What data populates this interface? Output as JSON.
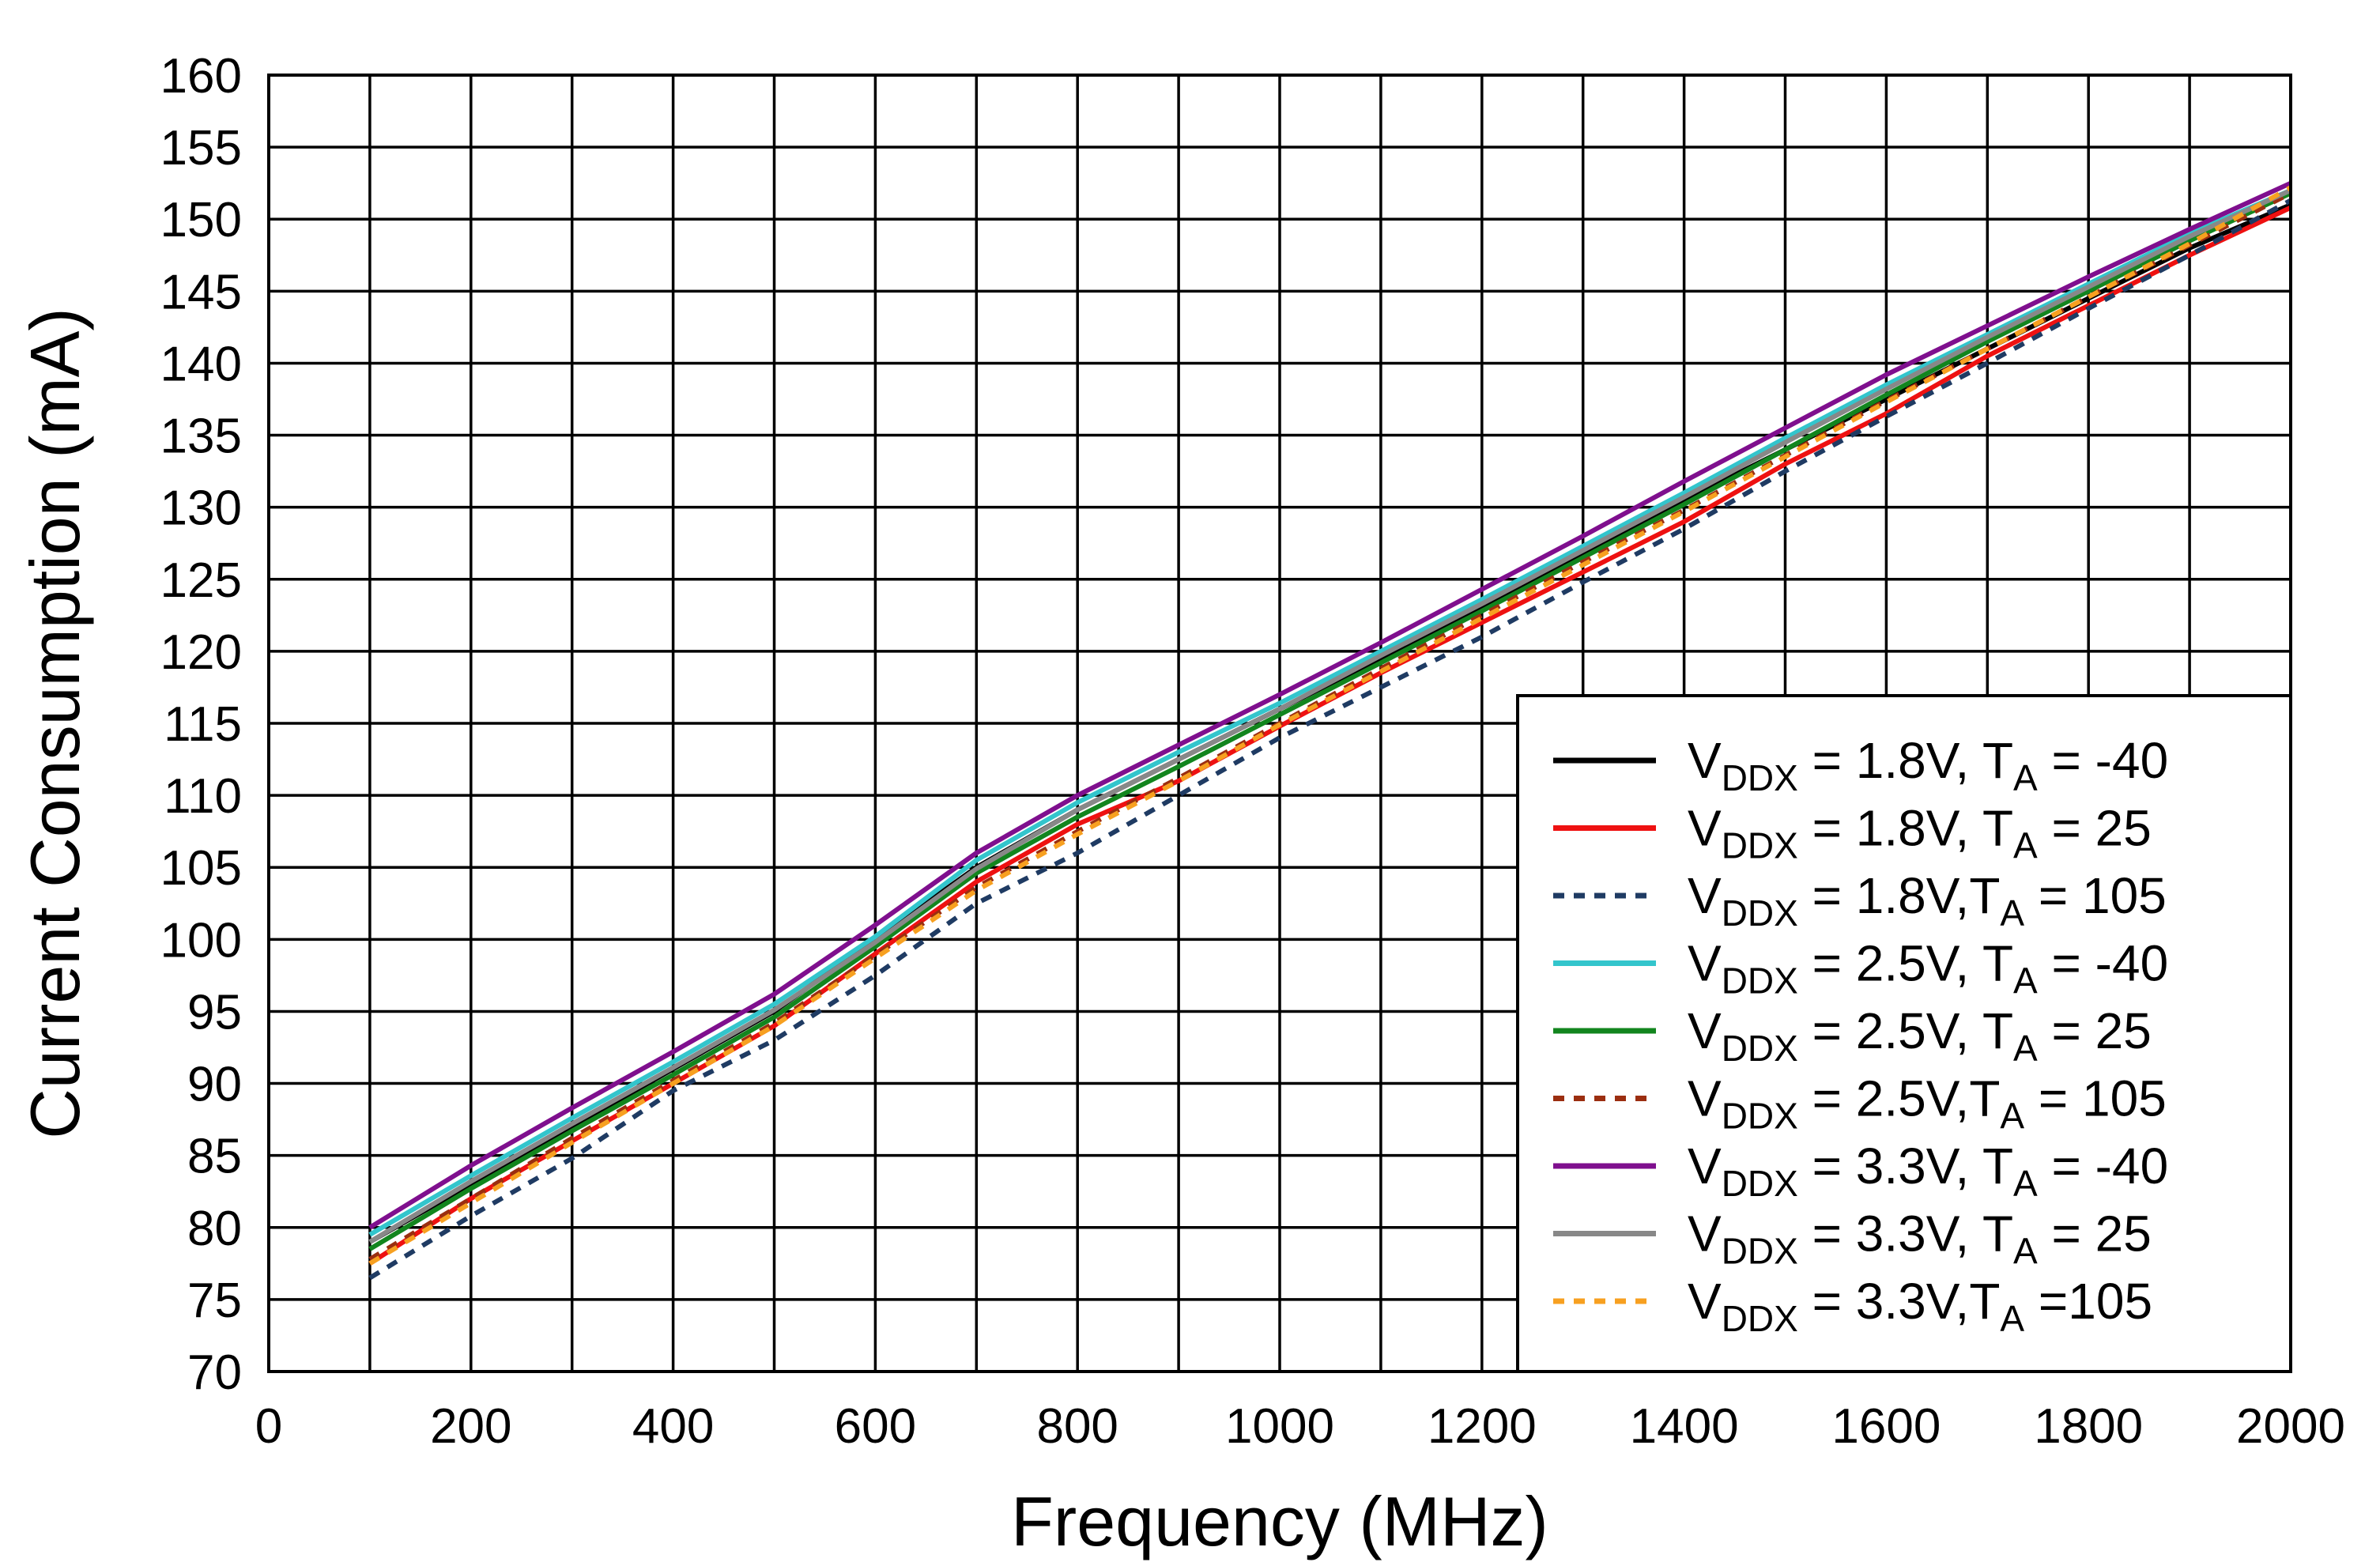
{
  "chart_data": {
    "type": "line",
    "title": "",
    "xlabel": "Frequency (MHz)",
    "ylabel": "Current Consumption (mA)",
    "xlim": [
      0,
      2000
    ],
    "ylim": [
      70,
      160
    ],
    "xticks": [
      0,
      200,
      400,
      600,
      800,
      1000,
      1200,
      1400,
      1600,
      1800,
      2000
    ],
    "yticks": [
      70,
      75,
      80,
      85,
      90,
      95,
      100,
      105,
      110,
      115,
      120,
      125,
      130,
      135,
      140,
      145,
      150,
      155,
      160
    ],
    "xgrid_step": 100,
    "grid": true,
    "legend_position": "bottom-right",
    "x": [
      100,
      200,
      300,
      400,
      500,
      600,
      700,
      800,
      900,
      1000,
      1100,
      1200,
      1300,
      1400,
      1500,
      1600,
      1700,
      1800,
      1900,
      2000
    ],
    "series": [
      {
        "name": "V_DDX = 1.8V, T_A = -40",
        "label_main": "V",
        "label_sub": "DDX",
        "label_mid": " = 1.8V, T",
        "label_sub2": "A",
        "label_end": " = -40",
        "color": "#000000",
        "dash": "solid",
        "values": [
          79.0,
          83.0,
          87.0,
          91.0,
          95.0,
          100.0,
          105.0,
          109.0,
          112.5,
          116.0,
          119.5,
          123.0,
          126.8,
          130.5,
          134.0,
          137.5,
          141.0,
          144.5,
          148.0,
          151.0
        ]
      },
      {
        "name": "V_DDX = 1.8V, T_A = 25",
        "label_main": "V",
        "label_sub": "DDX",
        "label_mid": " = 1.8V, T",
        "label_sub2": "A",
        "label_end": " = 25",
        "color": "#ee1111",
        "dash": "solid",
        "values": [
          77.5,
          82.0,
          86.0,
          90.0,
          94.0,
          99.0,
          104.0,
          108.0,
          111.0,
          114.8,
          118.5,
          122.0,
          125.5,
          129.0,
          133.0,
          136.5,
          140.5,
          144.0,
          147.5,
          150.8
        ]
      },
      {
        "name": "V_DDX = 1.8V,T_A = 105",
        "label_main": "V",
        "label_sub": "DDX",
        "label_mid": " = 1.8V,T",
        "label_sub2": "A",
        "label_end": " = 105",
        "color": "#1f3b63",
        "dash": "dashed",
        "values": [
          76.5,
          80.8,
          84.8,
          89.5,
          93.0,
          97.5,
          102.5,
          106.0,
          110.0,
          114.0,
          117.5,
          121.0,
          124.8,
          128.5,
          132.5,
          136.3,
          140.0,
          143.8,
          147.5,
          151.3
        ]
      },
      {
        "name": "V_DDX = 2.5V, T_A = -40",
        "label_main": "V",
        "label_sub": "DDX",
        "label_mid": " = 2.5V, T",
        "label_sub2": "A",
        "label_end": " = -40",
        "color": "#33c5cc",
        "dash": "solid",
        "values": [
          79.5,
          83.6,
          87.6,
          91.5,
          95.5,
          100.2,
          105.5,
          109.5,
          113.0,
          116.4,
          120.0,
          123.6,
          127.3,
          131.0,
          134.8,
          138.5,
          142.0,
          145.5,
          149.0,
          152.0
        ]
      },
      {
        "name": "V_DDX = 2.5V, T_A = 25",
        "label_main": "V",
        "label_sub": "DDX",
        "label_mid": " = 2.5V, T",
        "label_sub2": "A",
        "label_end": " = 25",
        "color": "#12851e",
        "dash": "solid",
        "values": [
          78.5,
          82.7,
          86.7,
          90.6,
          94.6,
          99.5,
          104.6,
          108.5,
          112.0,
          115.6,
          119.2,
          122.8,
          126.5,
          130.2,
          134.0,
          137.8,
          141.5,
          145.0,
          148.5,
          151.8
        ]
      },
      {
        "name": "V_DDX = 2.5V,T_A = 105",
        "label_main": "V",
        "label_sub": "DDX",
        "label_mid": " = 2.5V,T",
        "label_sub2": "A",
        "label_end": " = 105",
        "color": "#9b2e10",
        "dash": "dashed",
        "values": [
          77.8,
          82.0,
          86.2,
          90.2,
          94.2,
          98.9,
          103.6,
          107.5,
          111.2,
          115.0,
          118.8,
          122.5,
          126.2,
          129.8,
          133.6,
          137.4,
          141.0,
          144.6,
          148.2,
          151.8
        ]
      },
      {
        "name": "V_DDX = 3.3V, T_A = -40",
        "label_main": "V",
        "label_sub": "DDX",
        "label_mid": " = 3.3V, T",
        "label_sub2": "A",
        "label_end": " = -40",
        "color": "#7f0f8e",
        "dash": "solid",
        "values": [
          80.0,
          84.3,
          88.3,
          92.2,
          96.2,
          101.0,
          106.0,
          110.0,
          113.5,
          117.0,
          120.6,
          124.3,
          128.0,
          131.8,
          135.5,
          139.2,
          142.6,
          146.0,
          149.3,
          152.5
        ]
      },
      {
        "name": "V_DDX = 3.3V, T_A = 25",
        "label_main": "V",
        "label_sub": "DDX",
        "label_mid": " = 3.3V, T",
        "label_sub2": "A",
        "label_end": " = 25",
        "color": "#888888",
        "dash": "solid",
        "values": [
          79.0,
          83.2,
          87.2,
          91.1,
          95.1,
          99.8,
          104.9,
          109.0,
          112.5,
          116.0,
          119.7,
          123.3,
          127.0,
          130.7,
          134.5,
          138.2,
          141.8,
          145.3,
          148.8,
          152.0
        ]
      },
      {
        "name": "V_DDX = 3.3V,T_A =105",
        "label_main": "V",
        "label_sub": "DDX",
        "label_mid": " = 3.3V,T",
        "label_sub2": "A",
        "label_end": " =105",
        "color": "#f7a020",
        "dash": "dashed",
        "values": [
          77.5,
          81.7,
          85.9,
          90.0,
          94.0,
          98.7,
          103.4,
          107.3,
          111.0,
          114.9,
          118.6,
          122.3,
          126.0,
          129.7,
          133.5,
          137.3,
          141.0,
          144.6,
          148.3,
          152.2
        ]
      }
    ]
  }
}
